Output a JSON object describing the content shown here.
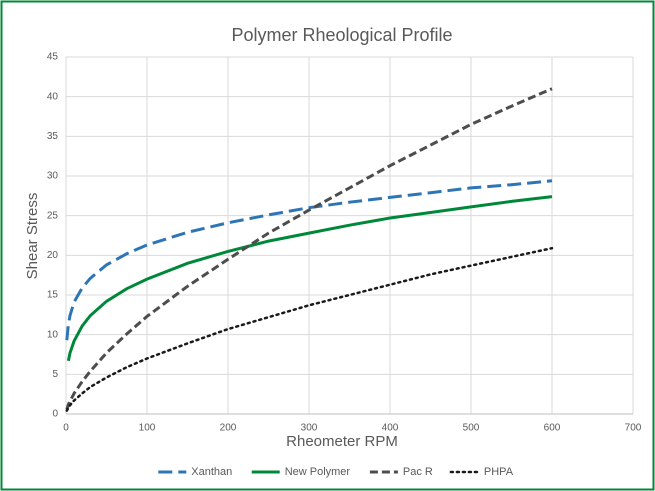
{
  "chart_data": {
    "type": "line",
    "title": "Polymer Rheological Profile",
    "x_label": "Rheometer RPM",
    "y_label": "Shear Stress",
    "x": [
      1,
      3,
      5,
      10,
      20,
      30,
      50,
      75,
      100,
      150,
      200,
      250,
      300,
      350,
      400,
      450,
      500,
      550,
      600
    ],
    "series": [
      {
        "name": "Xanthan",
        "color": "#2e75b6",
        "dash": "long",
        "values": [
          9.3,
          11.3,
          12.4,
          14.1,
          15.9,
          17.1,
          18.8,
          20.2,
          21.3,
          22.9,
          24.1,
          25.1,
          26.0,
          26.7,
          27.3,
          27.9,
          28.5,
          28.9,
          29.4
        ]
      },
      {
        "name": "New Polymer",
        "color": "#00883a",
        "dash": "solid",
        "values": [
          null,
          6.7,
          7.7,
          9.2,
          11.1,
          12.4,
          14.2,
          15.8,
          17.0,
          19.0,
          20.5,
          21.8,
          22.8,
          23.8,
          24.7,
          25.4,
          26.1,
          26.8,
          27.4
        ]
      },
      {
        "name": "Pac R",
        "color": "#4d4d4d",
        "dash": "medium",
        "values": [
          0.55,
          1.2,
          1.6,
          2.6,
          4.1,
          5.4,
          7.7,
          10.1,
          12.3,
          16.1,
          19.5,
          22.8,
          25.7,
          28.5,
          31.3,
          33.9,
          36.5,
          38.8,
          41.0
        ]
      },
      {
        "name": "PHPA",
        "color": "#1a1a1a",
        "dash": "dotted",
        "values": [
          0.42,
          0.8,
          1.1,
          1.7,
          2.6,
          3.4,
          4.6,
          5.9,
          7.0,
          8.9,
          10.7,
          12.2,
          13.7,
          15.0,
          16.3,
          17.6,
          18.7,
          19.8,
          20.9
        ]
      }
    ],
    "xlim": [
      0,
      700
    ],
    "xticks": [
      0,
      100,
      200,
      300,
      400,
      500,
      600,
      700
    ],
    "ylim": [
      0,
      45
    ],
    "yticks": [
      0,
      5,
      10,
      15,
      20,
      25,
      30,
      35,
      40,
      45
    ],
    "grid": true,
    "legend": "bottom",
    "border_color": "#00883a"
  }
}
